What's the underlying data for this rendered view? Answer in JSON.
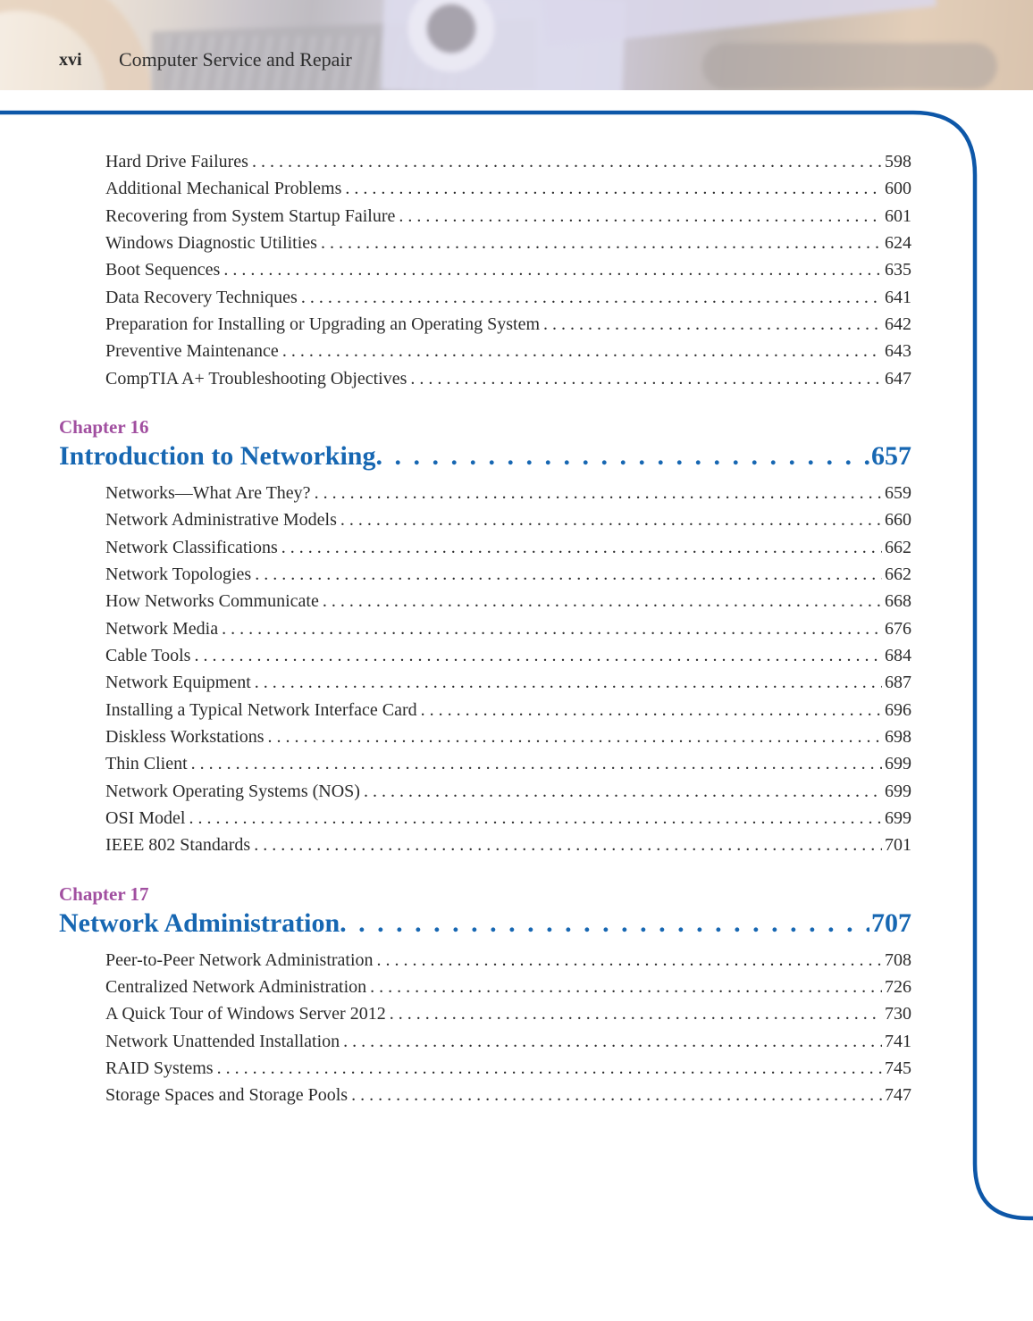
{
  "header": {
    "folio": "xvi",
    "book_title": "Computer Service and Repair"
  },
  "colors": {
    "border_blue": "#0d57a8",
    "title_blue": "#1767b2",
    "chapter_purple": "#a14fa0",
    "body_text": "#2b2b2b"
  },
  "toc": {
    "sections": [
      {
        "entries": [
          {
            "label": "Hard Drive Failures",
            "page": "598"
          },
          {
            "label": "Additional Mechanical Problems",
            "page": "600"
          },
          {
            "label": "Recovering from System Startup Failure",
            "page": "601"
          },
          {
            "label": "Windows Diagnostic Utilities",
            "page": "624"
          },
          {
            "label": "Boot Sequences",
            "page": "635"
          },
          {
            "label": "Data Recovery Techniques",
            "page": "641"
          },
          {
            "label": "Preparation for Installing or Upgrading an Operating System",
            "page": "642"
          },
          {
            "label": "Preventive Maintenance",
            "page": "643"
          },
          {
            "label": "CompTIA A+ Troubleshooting Objectives",
            "page": "647"
          }
        ]
      },
      {
        "chapter_label": "Chapter 16",
        "title": "Introduction to Networking",
        "page": "657",
        "entries": [
          {
            "label": "Networks—What Are They?",
            "page": "659"
          },
          {
            "label": "Network Administrative Models",
            "page": "660"
          },
          {
            "label": "Network Classifications",
            "page": "662"
          },
          {
            "label": "Network Topologies",
            "page": "662"
          },
          {
            "label": "How Networks Communicate",
            "page": "668"
          },
          {
            "label": "Network Media",
            "page": "676"
          },
          {
            "label": "Cable Tools",
            "page": "684"
          },
          {
            "label": "Network Equipment",
            "page": "687"
          },
          {
            "label": "Installing a Typical Network Interface Card",
            "page": "696"
          },
          {
            "label": "Diskless Workstations",
            "page": "698"
          },
          {
            "label": "Thin Client",
            "page": "699"
          },
          {
            "label": "Network Operating Systems (NOS)",
            "page": "699"
          },
          {
            "label": "OSI Model",
            "page": "699"
          },
          {
            "label": "IEEE 802 Standards",
            "page": "701"
          }
        ]
      },
      {
        "chapter_label": "Chapter 17",
        "title": "Network Administration",
        "page": "707",
        "entries": [
          {
            "label": "Peer-to-Peer Network Administration",
            "page": "708"
          },
          {
            "label": "Centralized Network Administration",
            "page": "726"
          },
          {
            "label": "A Quick Tour of Windows Server 2012",
            "page": "730"
          },
          {
            "label": "Network Unattended Installation",
            "page": "741"
          },
          {
            "label": "RAID Systems",
            "page": "745"
          },
          {
            "label": "Storage Spaces and Storage Pools",
            "page": "747"
          }
        ]
      }
    ]
  }
}
